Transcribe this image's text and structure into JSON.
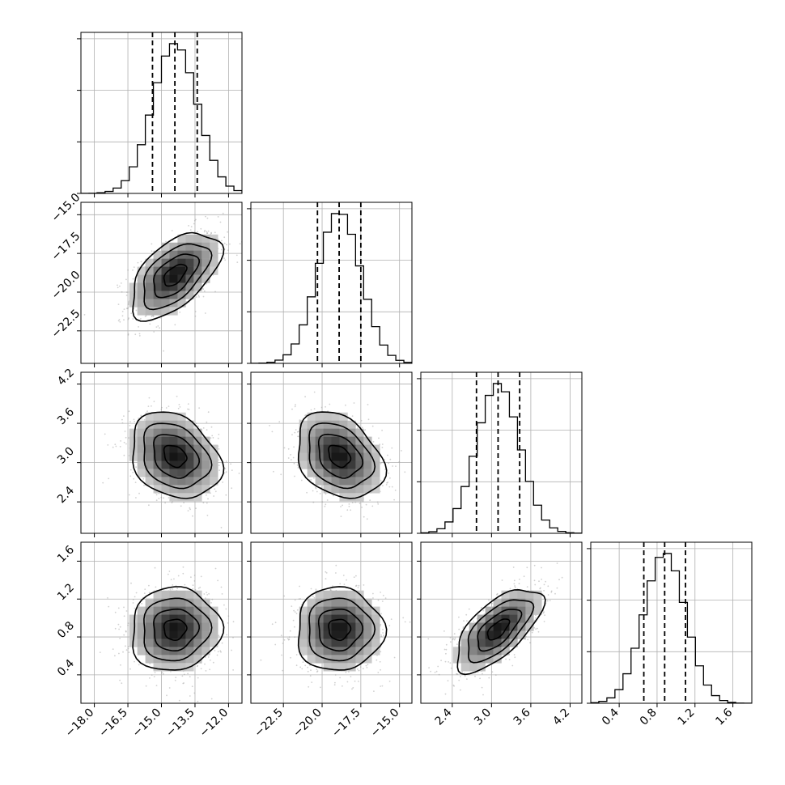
{
  "chart_data": {
    "type": "corner",
    "grid": true,
    "parameters": [
      {
        "range": [
          -18.6,
          -11.4
        ],
        "ticks": [
          -18.0,
          -16.5,
          -15.0,
          -13.5,
          -12.0
        ],
        "tick_labels": [
          "−18.0",
          "−16.5",
          "−15.0",
          "−13.5",
          "−12.0"
        ],
        "quantiles": [
          -15.4,
          -14.4,
          -13.4
        ],
        "mean": -14.4,
        "sd": 1.0
      },
      {
        "range": [
          -24.6,
          -14.2
        ],
        "ticks": [
          -22.5,
          -20.0,
          -17.5,
          -15.0
        ],
        "tick_labels": [
          "−22.5",
          "−20.0",
          "−17.5",
          "−15.0"
        ],
        "quantiles": [
          -20.3,
          -18.9,
          -17.5
        ],
        "mean": -18.9,
        "sd": 1.4
      },
      {
        "range": [
          1.92,
          4.38
        ],
        "ticks": [
          2.4,
          3.0,
          3.6,
          4.2
        ],
        "tick_labels": [
          "2.4",
          "3.0",
          "3.6",
          "4.2"
        ],
        "quantiles": [
          2.77,
          3.1,
          3.43
        ],
        "mean": 3.1,
        "sd": 0.33
      },
      {
        "range": [
          0.1,
          1.8
        ],
        "ticks": [
          0.4,
          0.8,
          1.2,
          1.6
        ],
        "tick_labels": [
          "0.4",
          "0.8",
          "1.2",
          "1.6"
        ],
        "quantiles": [
          0.66,
          0.88,
          1.1
        ],
        "mean": 0.88,
        "sd": 0.22
      }
    ],
    "correlations": [
      {
        "x": 0,
        "y": 1,
        "rho": 0.55
      },
      {
        "x": 0,
        "y": 2,
        "rho": -0.25
      },
      {
        "x": 1,
        "y": 2,
        "rho": -0.3
      },
      {
        "x": 0,
        "y": 3,
        "rho": 0.05
      },
      {
        "x": 1,
        "y": 3,
        "rho": 0.0
      },
      {
        "x": 2,
        "y": 3,
        "rho": 0.65
      }
    ],
    "contour_levels": [
      "0.5 sigma",
      "1 sigma",
      "1.5 sigma",
      "2 sigma"
    ],
    "quantile_line_style": "dashed"
  }
}
